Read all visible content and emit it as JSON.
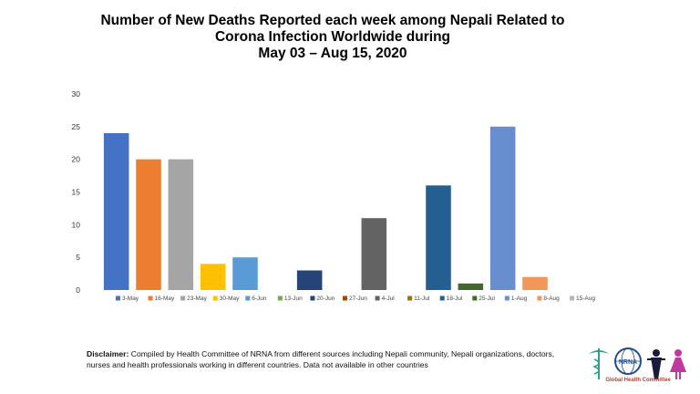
{
  "chart_data": {
    "type": "bar",
    "title": [
      "Number of New Deaths Reported each week among Nepali Related to",
      "Corona Infection Worldwide during",
      "May 03 – Aug 15, 2020"
    ],
    "categories": [
      "3-May",
      "16-May",
      "23-May",
      "30-May",
      "6-Jun",
      "13-Jun",
      "20-Jun",
      "27-Jun",
      "4-Jul",
      "11-Jul",
      "18-Jul",
      "25-Jul",
      "1-Aug",
      "8-Aug",
      "15-Aug"
    ],
    "values": [
      24,
      20,
      20,
      4,
      5,
      0,
      3,
      0,
      11,
      0,
      16,
      1,
      25,
      2,
      0
    ],
    "colors": [
      "#4472c4",
      "#ed7d31",
      "#a5a5a5",
      "#ffc000",
      "#5b9bd5",
      "#70ad47",
      "#264478",
      "#9e480e",
      "#636363",
      "#997300",
      "#255e91",
      "#43682b",
      "#698ed0",
      "#f1975a",
      "#b7b7b7"
    ],
    "yticks": [
      0,
      5,
      10,
      15,
      20,
      25,
      30
    ],
    "ylim": [
      0,
      30
    ],
    "grid": false,
    "legend": "bottom"
  },
  "disclaimer": {
    "label": "Disclaimer:",
    "text": " Compiled by Health Committee of NRNA from different sources including Nepali community, Nepali organizations, doctors, nurses and health professionals working in different countries. Data not available in other countries"
  },
  "logo": {
    "badge_text": "NRNA",
    "caption": "Global Health Committee"
  }
}
